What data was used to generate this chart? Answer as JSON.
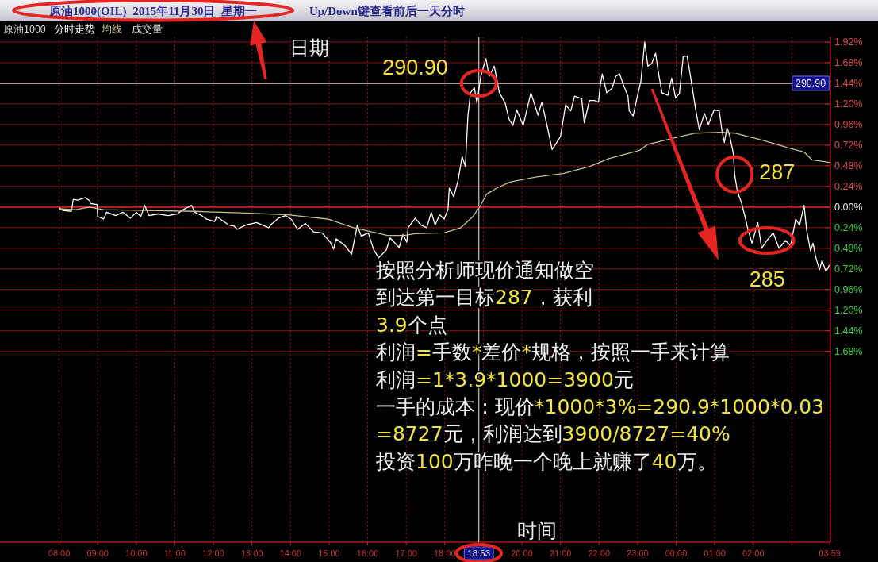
{
  "chart_data": {
    "type": "line",
    "title": "原油1000(OIL) 2015年11月30日 星期一 Up/Down键查看前后一天分时",
    "subtitle": "原油1000",
    "xlim": [
      "2015-11-30T06:28",
      "2015-12-01T04:00"
    ],
    "ylim": [
      -3.9,
      1.98
    ],
    "xticks": [
      {
        "value": "2015-11-30T08:00",
        "label": "08:00"
      },
      {
        "value": "2015-11-30T09:00",
        "label": "09:00"
      },
      {
        "value": "2015-11-30T10:00",
        "label": "10:00"
      },
      {
        "value": "2015-11-30T11:00",
        "label": "11:00"
      },
      {
        "value": "2015-11-30T12:00",
        "label": "12:00"
      },
      {
        "value": "2015-11-30T13:00",
        "label": "13:00"
      },
      {
        "value": "2015-11-30T14:00",
        "label": "14:00"
      },
      {
        "value": "2015-11-30T15:00",
        "label": "15:00"
      },
      {
        "value": "2015-11-30T16:00",
        "label": "16:00"
      },
      {
        "value": "2015-11-30T17:00",
        "label": "17:00"
      },
      {
        "value": "2015-11-30T18:00",
        "label": "18:00"
      },
      {
        "value": "2015-11-30T19:00",
        "label": null
      },
      {
        "value": "2015-11-30T20:00",
        "label": "20:00"
      },
      {
        "value": "2015-11-30T21:00",
        "label": "21:00"
      },
      {
        "value": "2015-11-30T22:00",
        "label": "22:00"
      },
      {
        "value": "2015-11-30T23:00",
        "label": "23:00"
      },
      {
        "value": "2015-12-01T00:00",
        "label": "00:00"
      },
      {
        "value": "2015-12-01T01:00",
        "label": "01:00"
      },
      {
        "value": "2015-12-01T02:00",
        "label": "02:00"
      },
      {
        "value": "2015-12-01T03:00",
        "label": null
      },
      {
        "value": "2015-12-01T03:59",
        "label": "03:59"
      }
    ],
    "yticks": [
      {
        "value": 1.92,
        "label": "1.92%"
      },
      {
        "value": 1.68,
        "label": "1.68%"
      },
      {
        "value": 1.44,
        "label": "1.44%"
      },
      {
        "value": 1.2,
        "label": "1.20%"
      },
      {
        "value": 0.96,
        "label": "0.96%"
      },
      {
        "value": 0.72,
        "label": "0.72%"
      },
      {
        "value": 0.48,
        "label": "0.48%"
      },
      {
        "value": 0.24,
        "label": "0.24%"
      },
      {
        "value": 0,
        "label": "0.00%"
      },
      {
        "value": -0.24,
        "label": "0.24%"
      },
      {
        "value": -0.48,
        "label": "0.48%"
      },
      {
        "value": -0.72,
        "label": "0.72%"
      },
      {
        "value": -0.96,
        "label": "0.96%"
      },
      {
        "value": -1.2,
        "label": "1.20%"
      },
      {
        "value": -1.44,
        "label": "1.44%"
      },
      {
        "value": -1.68,
        "label": "1.68%"
      }
    ],
    "grid": true,
    "legend": "top left",
    "series": [
      {
        "name": "分时走势",
        "color": "#ffffff",
        "x": [
          "2015-11-30T08:00",
          "2015-11-30T08:06",
          "2015-11-30T08:19",
          "2015-11-30T08:22",
          "2015-11-30T08:29",
          "2015-11-30T08:41",
          "2015-11-30T08:48",
          "2015-11-30T08:49",
          "2015-11-30T08:59",
          "2015-11-30T09:00",
          "2015-11-30T09:09",
          "2015-11-30T09:14",
          "2015-11-30T09:28",
          "2015-11-30T09:39",
          "2015-11-30T09:51",
          "2015-11-30T10:00",
          "2015-11-30T10:07",
          "2015-11-30T10:13",
          "2015-11-30T10:20",
          "2015-11-30T10:34",
          "2015-11-30T10:49",
          "2015-11-30T11:04",
          "2015-11-30T11:13",
          "2015-11-30T11:26",
          "2015-11-30T11:31",
          "2015-11-30T11:42",
          "2015-11-30T11:49",
          "2015-11-30T12:02",
          "2015-11-30T12:05",
          "2015-11-30T12:24",
          "2015-11-30T12:32",
          "2015-11-30T12:37",
          "2015-11-30T12:50",
          "2015-11-30T13:07",
          "2015-11-30T13:26",
          "2015-11-30T13:29",
          "2015-11-30T13:41",
          "2015-11-30T13:52",
          "2015-11-30T14:01",
          "2015-11-30T14:11",
          "2015-11-30T14:23",
          "2015-11-30T14:36",
          "2015-11-30T14:49",
          "2015-11-30T15:02",
          "2015-11-30T15:07",
          "2015-11-30T15:11",
          "2015-11-30T15:25",
          "2015-11-30T15:35",
          "2015-11-30T15:44",
          "2015-11-30T15:50",
          "2015-11-30T16:01",
          "2015-11-30T16:09",
          "2015-11-30T16:17",
          "2015-11-30T16:29",
          "2015-11-30T16:35",
          "2015-11-30T16:49",
          "2015-11-30T16:55",
          "2015-11-30T17:01",
          "2015-11-30T17:03",
          "2015-11-30T17:14",
          "2015-11-30T17:23",
          "2015-11-30T17:32",
          "2015-11-30T17:39",
          "2015-11-30T17:45",
          "2015-11-30T17:52",
          "2015-11-30T17:59",
          "2015-11-30T18:05",
          "2015-11-30T18:07",
          "2015-11-30T18:14",
          "2015-11-30T18:21",
          "2015-11-30T18:27",
          "2015-11-30T18:32",
          "2015-11-30T18:36",
          "2015-11-30T18:40",
          "2015-11-30T18:46",
          "2015-11-30T18:50",
          "2015-11-30T18:56",
          "2015-11-30T19:04",
          "2015-11-30T19:09",
          "2015-11-30T19:17",
          "2015-11-30T19:25",
          "2015-11-30T19:34",
          "2015-11-30T19:40",
          "2015-11-30T19:46",
          "2015-11-30T19:52",
          "2015-11-30T20:02",
          "2015-11-30T20:14",
          "2015-11-30T20:25",
          "2015-11-30T20:31",
          "2015-11-30T20:39",
          "2015-11-30T20:47",
          "2015-11-30T21:00",
          "2015-11-30T21:08",
          "2015-11-30T21:16",
          "2015-11-30T21:22",
          "2015-11-30T21:33",
          "2015-11-30T21:37",
          "2015-11-30T21:45",
          "2015-11-30T21:53",
          "2015-11-30T21:59",
          "2015-11-30T22:02",
          "2015-11-30T22:05",
          "2015-11-30T22:12",
          "2015-11-30T22:20",
          "2015-11-30T22:26",
          "2015-11-30T22:32",
          "2015-11-30T22:38",
          "2015-11-30T22:45",
          "2015-11-30T22:47",
          "2015-11-30T22:53",
          "2015-11-30T22:59",
          "2015-11-30T23:05",
          "2015-11-30T23:11",
          "2015-11-30T23:16",
          "2015-11-30T23:22",
          "2015-11-30T23:28",
          "2015-11-30T23:32",
          "2015-11-30T23:38",
          "2015-11-30T23:47",
          "2015-11-30T23:53",
          "2015-11-30T23:59",
          "2015-12-01T00:05",
          "2015-12-01T00:11",
          "2015-12-01T00:17",
          "2015-12-01T00:23",
          "2015-12-01T00:30",
          "2015-12-01T00:36",
          "2015-12-01T00:44",
          "2015-12-01T00:50",
          "2015-12-01T00:59",
          "2015-12-01T01:07",
          "2015-12-01T01:11",
          "2015-12-01T01:15",
          "2015-12-01T01:19",
          "2015-12-01T01:23",
          "2015-12-01T01:29",
          "2015-12-01T01:31",
          "2015-12-01T01:35",
          "2015-12-01T01:42",
          "2015-12-01T01:46",
          "2015-12-01T01:52",
          "2015-12-01T01:58",
          "2015-12-01T02:07",
          "2015-12-01T02:13",
          "2015-12-01T02:21",
          "2015-12-01T02:31",
          "2015-12-01T02:40",
          "2015-12-01T02:50",
          "2015-12-01T02:58",
          "2015-12-01T03:06",
          "2015-12-01T03:12",
          "2015-12-01T03:19",
          "2015-12-01T03:23",
          "2015-12-01T03:29",
          "2015-12-01T03:33",
          "2015-12-01T03:37",
          "2015-12-01T03:43",
          "2015-12-01T03:47",
          "2015-12-01T03:53",
          "2015-12-01T03:58"
        ],
        "values": [
          -0.01,
          -0.04,
          -0.05,
          0.09,
          0.08,
          0.11,
          0.07,
          0.04,
          0.03,
          -0.11,
          -0.14,
          -0.06,
          -0.1,
          -0.06,
          -0.13,
          -0.06,
          -0.11,
          0.02,
          -0.1,
          -0.08,
          -0.1,
          -0.08,
          -0.03,
          0.02,
          -0.06,
          -0.1,
          -0.14,
          -0.17,
          -0.11,
          -0.21,
          -0.22,
          -0.26,
          -0.21,
          -0.18,
          -0.24,
          -0.21,
          -0.13,
          -0.1,
          -0.14,
          -0.26,
          -0.19,
          -0.29,
          -0.3,
          -0.41,
          -0.49,
          -0.37,
          -0.45,
          -0.55,
          -0.21,
          -0.34,
          -0.3,
          -0.49,
          -0.59,
          -0.5,
          -0.36,
          -0.47,
          -0.32,
          -0.41,
          -0.24,
          -0.13,
          -0.21,
          -0.24,
          -0.06,
          -0.21,
          -0.09,
          -0.14,
          -0.03,
          0.22,
          0.12,
          0.32,
          0.59,
          0.47,
          1.06,
          1.33,
          1.39,
          1.21,
          1.52,
          1.73,
          1.52,
          1.64,
          1.33,
          1.21,
          1.02,
          0.95,
          1.13,
          0.95,
          1.33,
          1.07,
          1.22,
          0.95,
          0.67,
          0.82,
          1.19,
          1.12,
          1.29,
          1.26,
          0.98,
          1.24,
          1.24,
          1.22,
          1.42,
          1.55,
          1.33,
          1.38,
          1.52,
          1.55,
          1.42,
          1.29,
          1.12,
          1.06,
          1.27,
          1.46,
          1.92,
          1.64,
          1.67,
          1.79,
          1.58,
          1.33,
          1.3,
          1.5,
          1.27,
          1.32,
          1.75,
          1.76,
          1.49,
          1.15,
          0.9,
          1.09,
          0.96,
          1.13,
          1.12,
          0.9,
          0.75,
          0.92,
          0.84,
          0.62,
          0.38,
          0.19,
          0.04,
          -0.08,
          -0.27,
          -0.42,
          -0.18,
          -0.48,
          -0.39,
          -0.3,
          -0.48,
          -0.39,
          -0.45,
          -0.14,
          -0.21,
          0.02,
          -0.27,
          -0.51,
          -0.42,
          -0.58,
          -0.73,
          -0.62,
          -0.75,
          -0.68
        ]
      },
      {
        "name": "均线",
        "color": "#c8c08a",
        "x": [
          "2015-11-30T08:00",
          "2015-11-30T08:26",
          "2015-11-30T08:47",
          "2015-11-30T09:09",
          "2015-11-30T10:16",
          "2015-11-30T11:31",
          "2015-11-30T12:50",
          "2015-11-30T13:56",
          "2015-11-30T14:58",
          "2015-11-30T15:38",
          "2015-11-30T16:31",
          "2015-11-30T16:57",
          "2015-11-30T17:14",
          "2015-11-30T17:59",
          "2015-11-30T18:25",
          "2015-11-30T18:44",
          "2015-11-30T18:55",
          "2015-11-30T19:05",
          "2015-11-30T19:21",
          "2015-11-30T19:41",
          "2015-11-30T20:23",
          "2015-11-30T21:04",
          "2015-11-30T21:45",
          "2015-11-30T22:14",
          "2015-11-30T23:03",
          "2015-11-30T23:16",
          "2015-11-30T23:49",
          "2015-12-01T00:30",
          "2015-12-01T01:11",
          "2015-12-01T01:31",
          "2015-12-01T02:13",
          "2015-12-01T02:54",
          "2015-12-01T03:19",
          "2015-12-01T03:31",
          "2015-12-01T03:59"
        ],
        "values": [
          -0.02,
          -0.03,
          0.0,
          -0.03,
          -0.04,
          -0.05,
          -0.07,
          -0.09,
          -0.14,
          -0.24,
          -0.33,
          -0.33,
          -0.31,
          -0.3,
          -0.24,
          -0.11,
          0.01,
          0.15,
          0.22,
          0.29,
          0.35,
          0.39,
          0.47,
          0.56,
          0.66,
          0.73,
          0.79,
          0.86,
          0.87,
          0.86,
          0.78,
          0.69,
          0.64,
          0.55,
          0.52
        ]
      }
    ],
    "ref_lines": [
      {
        "axis": "x",
        "value": "2015-11-30T18:53",
        "color": "#c8c8c8"
      },
      {
        "axis": "y",
        "value": 1.44,
        "color": "#c8c8c8"
      },
      {
        "axis": "y",
        "value": 0,
        "color": "#d41a1a"
      }
    ],
    "annotations": [
      "成交量",
      "日期",
      {
        "text": "290.90",
        "x": "2015-11-30T18:53",
        "y": 1.44
      },
      {
        "text": "287",
        "x": "2015-12-01T01:31",
        "y": 0.38
      },
      {
        "text": "285",
        "x": "2015-12-01T02:21",
        "y": -0.39
      },
      {
        "text": "290.90",
        "x": "2015-12-01T03:59",
        "y": 1.44
      },
      {
        "text": "18:53",
        "x": "2015-11-30T18:53",
        "y": -3.9
      },
      "时间",
      "按照分析师现价通知做空",
      "到达第一目标287，获利",
      "3.9个点",
      "利润=手数*差价*规格，按照一手来计算",
      "利润=1*3.9*1000=3900元",
      "一手的成本：现价*1000*3%=290.9*1000*0.03",
      "=8727元，利润达到3900/8727=40%",
      "投资100万昨晚一个晚上就赚了40万。"
    ]
  }
}
